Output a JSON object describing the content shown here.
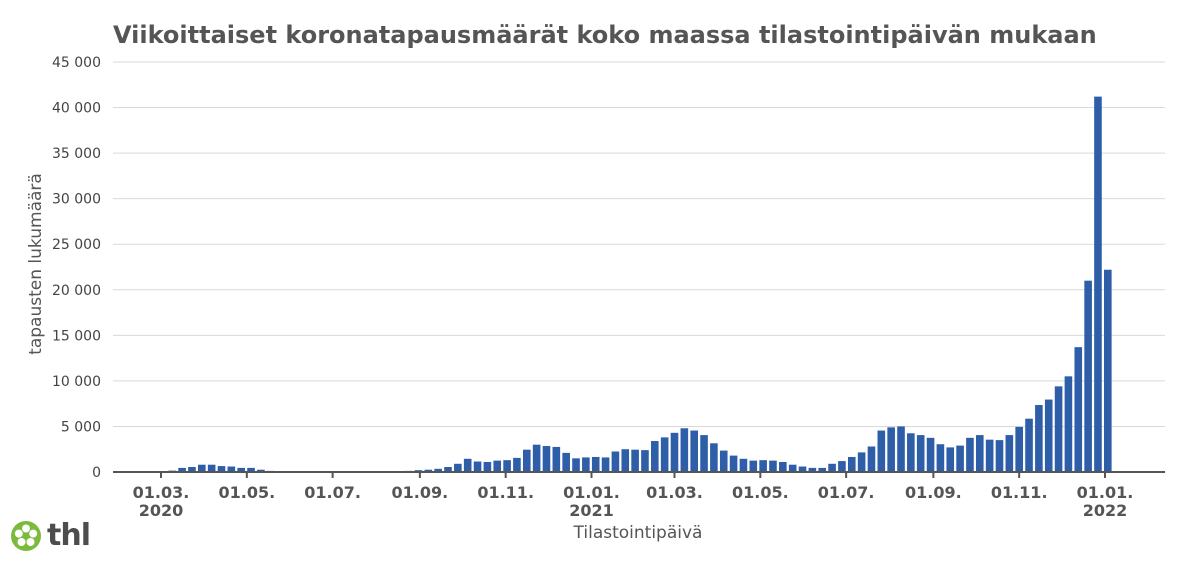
{
  "chart_data": {
    "type": "bar",
    "title": "Viikoittaiset koronatapausmäärät koko maassa tilastointipäivän mukaan",
    "xlabel": "Tilastointipäivä",
    "ylabel": "tapausten lukumäärä",
    "ylim": [
      0,
      45000
    ],
    "yticks": [
      0,
      5000,
      10000,
      15000,
      20000,
      25000,
      30000,
      35000,
      40000,
      45000
    ],
    "ytick_labels": [
      "0",
      "5 000",
      "10 000",
      "15 000",
      "20 000",
      "25 000",
      "30 000",
      "35 000",
      "40 000",
      "45 000"
    ],
    "xticks": [
      {
        "label": "01.03.",
        "year": "2020",
        "date": "2020-03-01"
      },
      {
        "label": "01.05.",
        "year": "",
        "date": "2020-05-01"
      },
      {
        "label": "01.07.",
        "year": "",
        "date": "2020-07-01"
      },
      {
        "label": "01.09.",
        "year": "",
        "date": "2020-09-01"
      },
      {
        "label": "01.11.",
        "year": "",
        "date": "2020-11-01"
      },
      {
        "label": "01.01.",
        "year": "2021",
        "date": "2021-01-01"
      },
      {
        "label": "01.03.",
        "year": "",
        "date": "2021-03-01"
      },
      {
        "label": "01.05.",
        "year": "",
        "date": "2021-05-01"
      },
      {
        "label": "01.07.",
        "year": "",
        "date": "2021-07-01"
      },
      {
        "label": "01.09.",
        "year": "",
        "date": "2021-09-01"
      },
      {
        "label": "01.11.",
        "year": "",
        "date": "2021-11-01"
      },
      {
        "label": "01.01.",
        "year": "2022",
        "date": "2022-01-01"
      }
    ],
    "grid": true,
    "color": "#2e5ea8",
    "x": [
      "2020-01-27",
      "2020-02-03",
      "2020-02-10",
      "2020-02-17",
      "2020-02-24",
      "2020-03-02",
      "2020-03-09",
      "2020-03-16",
      "2020-03-23",
      "2020-03-30",
      "2020-04-06",
      "2020-04-13",
      "2020-04-20",
      "2020-04-27",
      "2020-05-04",
      "2020-05-11",
      "2020-05-18",
      "2020-05-25",
      "2020-06-01",
      "2020-06-08",
      "2020-06-15",
      "2020-06-22",
      "2020-06-29",
      "2020-07-06",
      "2020-07-13",
      "2020-07-20",
      "2020-07-27",
      "2020-08-03",
      "2020-08-10",
      "2020-08-17",
      "2020-08-24",
      "2020-08-31",
      "2020-09-07",
      "2020-09-14",
      "2020-09-21",
      "2020-09-28",
      "2020-10-05",
      "2020-10-12",
      "2020-10-19",
      "2020-10-26",
      "2020-11-02",
      "2020-11-09",
      "2020-11-16",
      "2020-11-23",
      "2020-11-30",
      "2020-12-07",
      "2020-12-14",
      "2020-12-21",
      "2020-12-28",
      "2021-01-04",
      "2021-01-11",
      "2021-01-18",
      "2021-01-25",
      "2021-02-01",
      "2021-02-08",
      "2021-02-15",
      "2021-02-22",
      "2021-03-01",
      "2021-03-08",
      "2021-03-15",
      "2021-03-22",
      "2021-03-29",
      "2021-04-05",
      "2021-04-12",
      "2021-04-19",
      "2021-04-26",
      "2021-05-03",
      "2021-05-10",
      "2021-05-17",
      "2021-05-24",
      "2021-05-31",
      "2021-06-07",
      "2021-06-14",
      "2021-06-21",
      "2021-06-28",
      "2021-07-05",
      "2021-07-12",
      "2021-07-19",
      "2021-07-26",
      "2021-08-02",
      "2021-08-09",
      "2021-08-16",
      "2021-08-23",
      "2021-08-30",
      "2021-09-06",
      "2021-09-13",
      "2021-09-20",
      "2021-09-27",
      "2021-10-04",
      "2021-10-11",
      "2021-10-18",
      "2021-10-25",
      "2021-11-01",
      "2021-11-08",
      "2021-11-15",
      "2021-11-22",
      "2021-11-29",
      "2021-12-06",
      "2021-12-13",
      "2021-12-20",
      "2021-12-27",
      "2022-01-03"
    ],
    "values": [
      0,
      0,
      0,
      0,
      0,
      50,
      150,
      450,
      550,
      800,
      800,
      650,
      600,
      450,
      450,
      250,
      120,
      80,
      50,
      40,
      30,
      30,
      30,
      25,
      25,
      30,
      50,
      60,
      80,
      100,
      120,
      200,
      250,
      350,
      550,
      900,
      1450,
      1150,
      1100,
      1250,
      1300,
      1550,
      2450,
      3000,
      2850,
      2750,
      2100,
      1500,
      1600,
      1650,
      1600,
      2250,
      2500,
      2450,
      2400,
      3400,
      3800,
      4300,
      4800,
      4550,
      4050,
      3150,
      2350,
      1800,
      1450,
      1250,
      1300,
      1250,
      1100,
      800,
      600,
      450,
      450,
      900,
      1200,
      1650,
      2150,
      2800,
      4550,
      4900,
      5000,
      4250,
      4050,
      3750,
      3050,
      2700,
      2900,
      3750,
      4050,
      3550,
      3500,
      4050,
      4950,
      5850,
      7350,
      7950,
      9400,
      10500,
      13700,
      21000,
      41200,
      22200
    ]
  },
  "logo": {
    "text": "thl",
    "icon": "thl-flower-icon"
  }
}
